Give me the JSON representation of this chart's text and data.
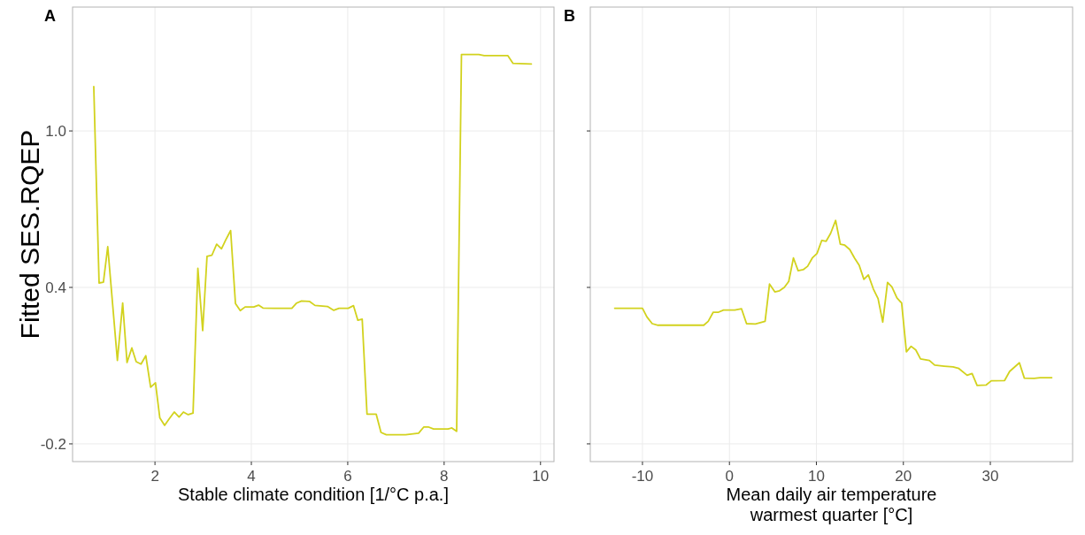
{
  "chart_data": [
    {
      "type": "line",
      "title": "A",
      "xlabel": "Stable climate condition [1/°C p.a.]",
      "ylabel": "Fitted SES.RQEP",
      "xlim": [
        0.29,
        10.28
      ],
      "xticks": [
        2,
        4,
        6,
        8,
        10
      ],
      "ylim": [
        -0.268,
        1.475
      ],
      "yticks": [
        -0.2,
        0.4,
        {
          "value": 1,
          "label": "1.0"
        }
      ],
      "grid": true,
      "line_style": "solid",
      "marker": "none",
      "series": [
        {
          "color": "#d2d21e",
          "x": [
            0.73,
            0.84,
            0.93,
            1.02,
            1.22,
            1.33,
            1.42,
            1.52,
            1.61,
            1.71,
            1.81,
            1.91,
            2.01,
            2.1,
            2.2,
            2.3,
            2.4,
            2.5,
            2.59,
            2.69,
            2.79,
            2.89,
            2.99,
            3.08,
            3.18,
            3.28,
            3.38,
            3.47,
            3.57,
            3.67,
            3.77,
            3.87,
            4.05,
            4.15,
            4.24,
            4.48,
            4.84,
            4.94,
            5.04,
            5.21,
            5.32,
            5.58,
            5.71,
            5.82,
            6.01,
            6.12,
            6.21,
            6.3,
            6.4,
            6.59,
            6.69,
            6.8,
            7.2,
            7.47,
            7.58,
            7.67,
            7.78,
            8.08,
            8.16,
            8.26,
            8.36,
            8.72,
            8.83,
            9.32,
            9.43,
            9.81
          ],
          "values": [
            1.17,
            0.417,
            0.42,
            0.556,
            0.12,
            0.34,
            0.112,
            0.168,
            0.115,
            0.106,
            0.138,
            0.017,
            0.034,
            -0.1,
            -0.129,
            -0.103,
            -0.078,
            -0.097,
            -0.078,
            -0.088,
            -0.082,
            0.473,
            0.234,
            0.519,
            0.523,
            0.566,
            0.548,
            0.583,
            0.618,
            0.338,
            0.311,
            0.325,
            0.325,
            0.332,
            0.321,
            0.32,
            0.32,
            0.34,
            0.348,
            0.346,
            0.331,
            0.327,
            0.312,
            0.32,
            0.32,
            0.33,
            0.274,
            0.278,
            -0.086,
            -0.086,
            -0.156,
            -0.165,
            -0.165,
            -0.159,
            -0.135,
            -0.135,
            -0.143,
            -0.143,
            -0.139,
            -0.152,
            1.293,
            1.293,
            1.289,
            1.289,
            1.259,
            1.257
          ]
        }
      ]
    },
    {
      "type": "line",
      "title": "B",
      "xlabel": "Mean daily air temperature\nwarmest quarter [°C]",
      "xlim": [
        -16.0,
        39.46
      ],
      "xticks": [
        -10,
        0,
        10,
        20,
        30
      ],
      "ylim": [
        -0.268,
        1.475
      ],
      "yticks": [
        -0.2,
        0.4,
        1
      ],
      "tick_labels": "x",
      "grid": true,
      "line_style": "solid",
      "marker": "none",
      "series": [
        {
          "color": "#d2d21e",
          "x": [
            -13.19,
            -10.0,
            -9.49,
            -8.88,
            -8.21,
            -2.95,
            -2.44,
            -1.86,
            -1.25,
            -0.68,
            0.61,
            1.39,
            1.97,
            2.98,
            4.1,
            4.61,
            5.22,
            5.76,
            6.31,
            6.82,
            7.36,
            7.9,
            8.48,
            8.99,
            9.53,
            10.07,
            10.61,
            11.12,
            11.63,
            12.21,
            12.75,
            13.26,
            13.84,
            14.38,
            14.92,
            15.46,
            15.97,
            16.55,
            17.09,
            17.63,
            18.18,
            18.68,
            19.26,
            19.8,
            20.35,
            20.89,
            21.43,
            21.97,
            22.99,
            23.6,
            24.69,
            25.71,
            26.38,
            27.33,
            27.9,
            28.48,
            29.53,
            30.11,
            31.64,
            32.22,
            33.34,
            33.91,
            35.03,
            35.71,
            37.06
          ],
          "values": [
            0.32,
            0.32,
            0.287,
            0.261,
            0.255,
            0.255,
            0.27,
            0.305,
            0.305,
            0.313,
            0.313,
            0.318,
            0.261,
            0.26,
            0.27,
            0.413,
            0.383,
            0.387,
            0.4,
            0.423,
            0.513,
            0.464,
            0.468,
            0.481,
            0.513,
            0.53,
            0.58,
            0.577,
            0.607,
            0.657,
            0.566,
            0.562,
            0.545,
            0.513,
            0.485,
            0.431,
            0.448,
            0.394,
            0.357,
            0.267,
            0.419,
            0.402,
            0.36,
            0.34,
            0.153,
            0.174,
            0.16,
            0.126,
            0.12,
            0.102,
            0.098,
            0.095,
            0.089,
            0.063,
            0.07,
            0.024,
            0.026,
            0.042,
            0.043,
            0.078,
            0.111,
            0.052,
            0.051,
            0.054,
            0.054
          ]
        }
      ]
    }
  ]
}
